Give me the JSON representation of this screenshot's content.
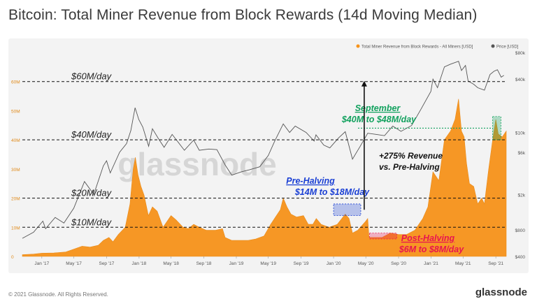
{
  "title": "Bitcoin: Total Miner Revenue from Block Rewards (14d Moving Median)",
  "footer": "© 2021 Glassnode. All Rights Reserved.",
  "brand": "glassnode",
  "watermark": "glassnode",
  "colors": {
    "revenue": "#f7931a",
    "price": "#555555",
    "pre_halving": "#1a3fd4",
    "post_halving": "#e8154f",
    "september": "#12a15e"
  },
  "chart_data": {
    "type": "area",
    "x_tick_labels": [
      "Jan '17",
      "May '17",
      "Sep '17",
      "Jan '18",
      "May '18",
      "Sep '18",
      "Jan '19",
      "May '19",
      "Sep '19",
      "Jan '20",
      "May '20",
      "Sep '20",
      "Jan '21",
      "May '21",
      "Sep '21"
    ],
    "x_tick_dates": [
      "2017-01-01",
      "2017-05-01",
      "2017-09-01",
      "2018-01-01",
      "2018-05-01",
      "2018-09-01",
      "2019-01-01",
      "2019-05-01",
      "2019-09-01",
      "2020-01-01",
      "2020-05-01",
      "2020-09-01",
      "2021-01-01",
      "2021-05-01",
      "2021-09-01"
    ],
    "x_range": [
      "2016-10-20",
      "2021-10-10"
    ],
    "y_left": {
      "ticks": [
        0,
        10,
        20,
        30,
        40,
        50,
        60
      ],
      "tick_labels": [
        "0",
        "10M",
        "20M",
        "30M",
        "40M",
        "50M",
        "60M"
      ],
      "range": [
        0,
        70
      ]
    },
    "y_right": {
      "scale": "log",
      "ticks": [
        400,
        800,
        2000,
        6000,
        10000,
        40000,
        80000
      ],
      "tick_labels": [
        "$400",
        "$800",
        "$2k",
        "$6k",
        "$10k",
        "$40k",
        "$80k"
      ],
      "range": [
        400,
        80000
      ]
    },
    "legend": {
      "placement": "top-right",
      "entries": [
        "Total Miner Revenue from Block Rewards - All Miners [USD]",
        "Price [USD]"
      ]
    },
    "series": [
      {
        "name": "Total Miner Revenue from Block Rewards - All Miners [USD]",
        "axis": "left",
        "points": [
          [
            "2016-10-20",
            0.6
          ],
          [
            "2016-12-01",
            0.8
          ],
          [
            "2017-01-01",
            1.1
          ],
          [
            "2017-02-15",
            1.2
          ],
          [
            "2017-04-01",
            1.5
          ],
          [
            "2017-05-01",
            2.5
          ],
          [
            "2017-06-01",
            3.5
          ],
          [
            "2017-07-01",
            3.2
          ],
          [
            "2017-08-01",
            3.8
          ],
          [
            "2017-08-20",
            5.5
          ],
          [
            "2017-09-10",
            6.5
          ],
          [
            "2017-09-25",
            5.0
          ],
          [
            "2017-10-15",
            7.5
          ],
          [
            "2017-11-10",
            10.0
          ],
          [
            "2017-11-28",
            18.0
          ],
          [
            "2017-12-10",
            30.0
          ],
          [
            "2017-12-18",
            34.0
          ],
          [
            "2017-12-28",
            28.0
          ],
          [
            "2018-01-08",
            24.0
          ],
          [
            "2018-01-20",
            21.0
          ],
          [
            "2018-02-05",
            14.0
          ],
          [
            "2018-02-20",
            17.0
          ],
          [
            "2018-03-10",
            15.5
          ],
          [
            "2018-04-01",
            10.0
          ],
          [
            "2018-05-01",
            14.0
          ],
          [
            "2018-05-20",
            12.5
          ],
          [
            "2018-06-15",
            10.0
          ],
          [
            "2018-07-05",
            9.5
          ],
          [
            "2018-07-25",
            11.0
          ],
          [
            "2018-08-15",
            10.0
          ],
          [
            "2018-09-10",
            9.0
          ],
          [
            "2018-10-15",
            9.0
          ],
          [
            "2018-11-10",
            9.5
          ],
          [
            "2018-11-20",
            6.5
          ],
          [
            "2018-12-15",
            5.5
          ],
          [
            "2019-01-15",
            5.5
          ],
          [
            "2019-02-15",
            5.5
          ],
          [
            "2019-03-15",
            6.0
          ],
          [
            "2019-04-15",
            7.0
          ],
          [
            "2019-05-10",
            11.0
          ],
          [
            "2019-05-28",
            13.5
          ],
          [
            "2019-06-15",
            16.0
          ],
          [
            "2019-06-26",
            20.0
          ],
          [
            "2019-07-10",
            17.0
          ],
          [
            "2019-07-25",
            14.5
          ],
          [
            "2019-08-15",
            13.5
          ],
          [
            "2019-09-10",
            14.0
          ],
          [
            "2019-09-28",
            11.0
          ],
          [
            "2019-10-15",
            11.0
          ],
          [
            "2019-10-28",
            13.0
          ],
          [
            "2019-11-15",
            11.0
          ],
          [
            "2019-12-15",
            10.0
          ],
          [
            "2020-01-15",
            11.0
          ],
          [
            "2020-02-14",
            14.5
          ],
          [
            "2020-02-28",
            13.0
          ],
          [
            "2020-03-12",
            8.0
          ],
          [
            "2020-04-01",
            9.0
          ],
          [
            "2020-04-30",
            12.0
          ],
          [
            "2020-05-08",
            13.0
          ],
          [
            "2020-05-13",
            6.5
          ],
          [
            "2020-06-01",
            6.5
          ],
          [
            "2020-07-01",
            6.5
          ],
          [
            "2020-08-01",
            8.0
          ],
          [
            "2020-09-01",
            7.5
          ],
          [
            "2020-10-01",
            7.5
          ],
          [
            "2020-11-01",
            9.0
          ],
          [
            "2020-12-01",
            13.0
          ],
          [
            "2020-12-20",
            17.0
          ],
          [
            "2021-01-08",
            29.0
          ],
          [
            "2021-01-30",
            26.0
          ],
          [
            "2021-02-20",
            40.0
          ],
          [
            "2021-03-15",
            43.0
          ],
          [
            "2021-04-01",
            47.0
          ],
          [
            "2021-04-14",
            54.0
          ],
          [
            "2021-04-25",
            43.0
          ],
          [
            "2021-05-05",
            41.0
          ],
          [
            "2021-05-14",
            32.0
          ],
          [
            "2021-05-25",
            25.0
          ],
          [
            "2021-06-10",
            24.0
          ],
          [
            "2021-06-25",
            18.0
          ],
          [
            "2021-07-10",
            20.0
          ],
          [
            "2021-07-20",
            18.0
          ],
          [
            "2021-08-05",
            30.0
          ],
          [
            "2021-08-20",
            40.0
          ],
          [
            "2021-09-01",
            47.0
          ],
          [
            "2021-09-10",
            42.0
          ],
          [
            "2021-09-25",
            41.0
          ],
          [
            "2021-10-10",
            43.0
          ]
        ]
      },
      {
        "name": "Price [USD]",
        "axis": "right",
        "points": [
          [
            "2016-10-20",
            640
          ],
          [
            "2016-12-01",
            750
          ],
          [
            "2017-01-05",
            1000
          ],
          [
            "2017-01-15",
            820
          ],
          [
            "2017-02-20",
            1100
          ],
          [
            "2017-03-25",
            950
          ],
          [
            "2017-05-01",
            1400
          ],
          [
            "2017-06-10",
            2800
          ],
          [
            "2017-07-15",
            2000
          ],
          [
            "2017-08-20",
            4200
          ],
          [
            "2017-09-01",
            4800
          ],
          [
            "2017-09-15",
            3500
          ],
          [
            "2017-10-20",
            6000
          ],
          [
            "2017-11-15",
            7500
          ],
          [
            "2017-12-01",
            10500
          ],
          [
            "2017-12-17",
            19000
          ],
          [
            "2017-12-31",
            14000
          ],
          [
            "2018-01-15",
            11500
          ],
          [
            "2018-02-06",
            7000
          ],
          [
            "2018-02-20",
            11000
          ],
          [
            "2018-03-15",
            8500
          ],
          [
            "2018-04-05",
            6800
          ],
          [
            "2018-05-05",
            9500
          ],
          [
            "2018-06-20",
            6300
          ],
          [
            "2018-07-25",
            8200
          ],
          [
            "2018-08-15",
            6300
          ],
          [
            "2018-09-20",
            6500
          ],
          [
            "2018-10-20",
            6400
          ],
          [
            "2018-11-20",
            4300
          ],
          [
            "2018-12-15",
            3300
          ],
          [
            "2019-01-20",
            3600
          ],
          [
            "2019-02-20",
            3800
          ],
          [
            "2019-03-30",
            4100
          ],
          [
            "2019-05-01",
            5500
          ],
          [
            "2019-05-25",
            8000
          ],
          [
            "2019-06-26",
            12500
          ],
          [
            "2019-07-20",
            10000
          ],
          [
            "2019-08-10",
            11800
          ],
          [
            "2019-09-20",
            10000
          ],
          [
            "2019-10-20",
            8000
          ],
          [
            "2019-10-27",
            9400
          ],
          [
            "2019-11-25",
            7200
          ],
          [
            "2019-12-18",
            6700
          ],
          [
            "2020-01-20",
            8700
          ],
          [
            "2020-02-14",
            10200
          ],
          [
            "2020-03-12",
            5000
          ],
          [
            "2020-04-10",
            7000
          ],
          [
            "2020-05-08",
            9800
          ],
          [
            "2020-06-10",
            9500
          ],
          [
            "2020-07-10",
            9200
          ],
          [
            "2020-08-10",
            11800
          ],
          [
            "2020-09-10",
            10300
          ],
          [
            "2020-10-20",
            12000
          ],
          [
            "2020-11-25",
            18500
          ],
          [
            "2020-12-31",
            29000
          ],
          [
            "2021-01-08",
            40000
          ],
          [
            "2021-01-25",
            32000
          ],
          [
            "2021-02-20",
            55000
          ],
          [
            "2021-03-15",
            59000
          ],
          [
            "2021-04-14",
            63500
          ],
          [
            "2021-04-25",
            50000
          ],
          [
            "2021-05-10",
            57000
          ],
          [
            "2021-05-20",
            38000
          ],
          [
            "2021-06-10",
            35000
          ],
          [
            "2021-06-25",
            32000
          ],
          [
            "2021-07-20",
            30000
          ],
          [
            "2021-08-10",
            45000
          ],
          [
            "2021-08-25",
            49000
          ],
          [
            "2021-09-07",
            51000
          ],
          [
            "2021-09-21",
            42000
          ],
          [
            "2021-10-01",
            44000
          ]
        ]
      }
    ],
    "reference_lines": [
      {
        "value": 60,
        "label": "$60M/day"
      },
      {
        "value": 40,
        "label": "$40M/day"
      },
      {
        "value": 20,
        "label": "$20M/day"
      },
      {
        "value": 10,
        "label": "$10M/day"
      }
    ],
    "annotations": {
      "pre_halving": {
        "title": "Pre-Halving",
        "range": "$14M to $18M/day",
        "box": {
          "x": [
            "2020-01-01",
            "2020-04-12"
          ],
          "y": [
            14,
            18
          ]
        }
      },
      "post_halving": {
        "title": "Post-Halving",
        "range": "$6M to $8M/day",
        "box": {
          "x": [
            "2020-05-15",
            "2020-08-25"
          ],
          "y": [
            6,
            8
          ]
        }
      },
      "september": {
        "title": "September",
        "range": "$40M to $48M/day",
        "box": {
          "x": [
            "2021-08-20",
            "2021-09-20"
          ],
          "y": [
            40,
            48
          ]
        },
        "line_y": 44
      },
      "growth": {
        "line1": "+275% Revenue",
        "line2": "vs. Pre-Halving",
        "arrow_date": "2020-04-25",
        "arrow_y": [
          16,
          60
        ]
      }
    }
  }
}
